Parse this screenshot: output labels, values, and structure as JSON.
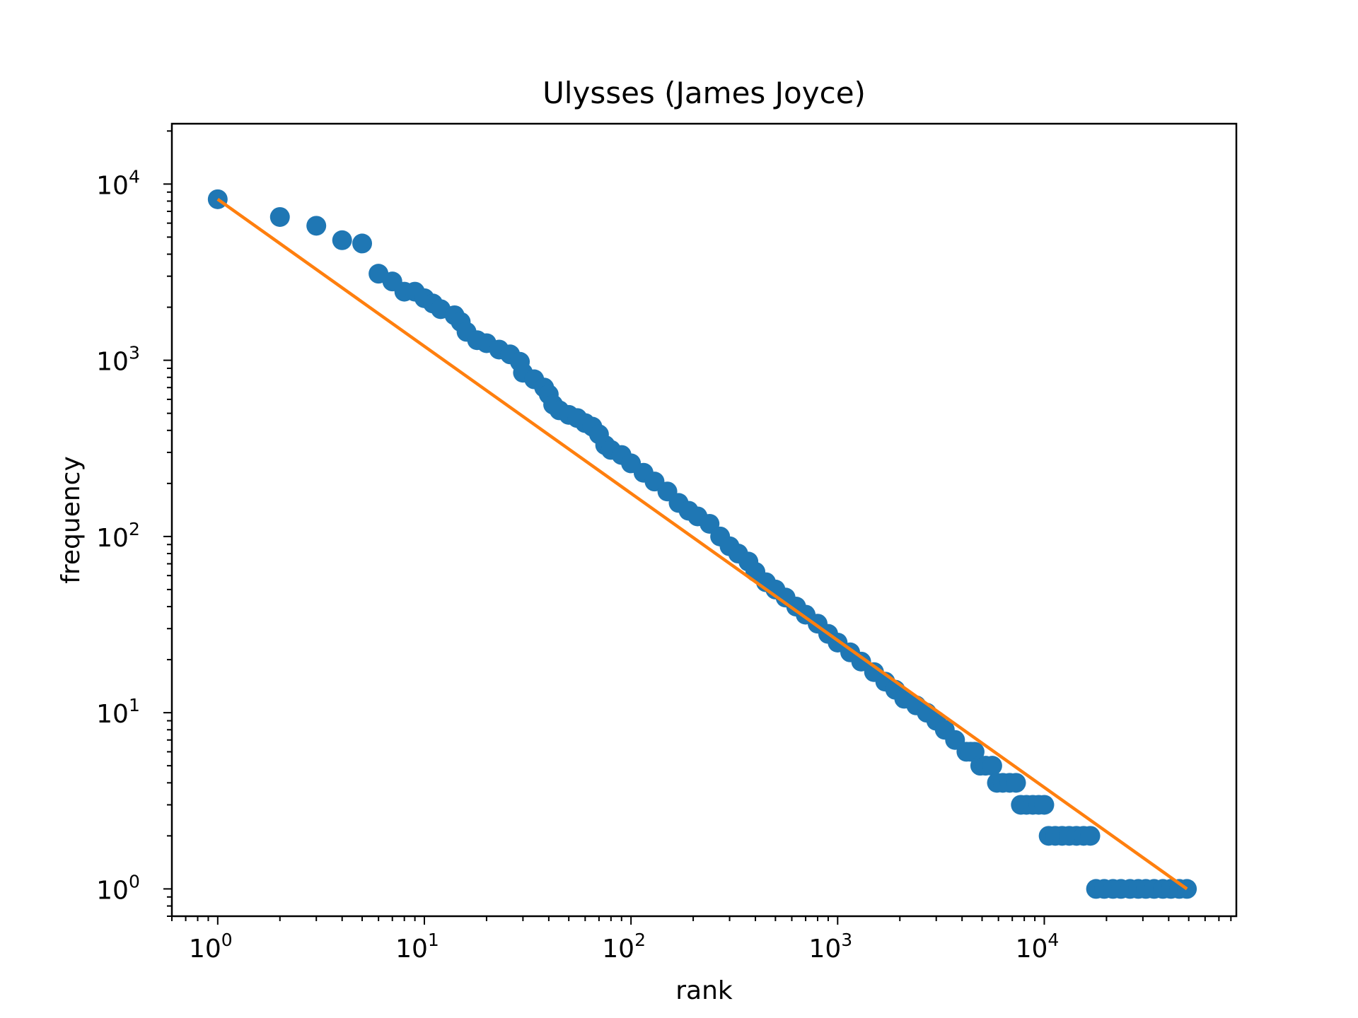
{
  "chart_data": {
    "type": "scatter",
    "title": "Ulysses (James Joyce)",
    "xlabel": "rank",
    "ylabel": "frequency",
    "xscale": "log",
    "yscale": "log",
    "xlim": [
      0.6,
      85000
    ],
    "ylim": [
      0.7,
      22000
    ],
    "x_ticks": [
      {
        "base": "10",
        "exp": "0",
        "value": 1
      },
      {
        "base": "10",
        "exp": "1",
        "value": 10
      },
      {
        "base": "10",
        "exp": "2",
        "value": 100
      },
      {
        "base": "10",
        "exp": "3",
        "value": 1000
      },
      {
        "base": "10",
        "exp": "4",
        "value": 10000
      }
    ],
    "y_ticks": [
      {
        "base": "10",
        "exp": "0",
        "value": 1
      },
      {
        "base": "10",
        "exp": "1",
        "value": 10
      },
      {
        "base": "10",
        "exp": "2",
        "value": 100
      },
      {
        "base": "10",
        "exp": "3",
        "value": 1000
      },
      {
        "base": "10",
        "exp": "4",
        "value": 10000
      }
    ],
    "grid": false,
    "series": [
      {
        "kind": "scatter",
        "color": "#1f77b4",
        "points": [
          [
            1,
            8200
          ],
          [
            2,
            6500
          ],
          [
            3,
            5800
          ],
          [
            4,
            4800
          ],
          [
            5,
            4600
          ],
          [
            6,
            3100
          ],
          [
            7,
            2800
          ],
          [
            8,
            2450
          ],
          [
            9,
            2450
          ],
          [
            10,
            2250
          ],
          [
            11,
            2100
          ],
          [
            12,
            1950
          ],
          [
            14,
            1800
          ],
          [
            15,
            1650
          ],
          [
            16,
            1450
          ],
          [
            18,
            1300
          ],
          [
            20,
            1250
          ],
          [
            23,
            1150
          ],
          [
            26,
            1080
          ],
          [
            29,
            980
          ],
          [
            30,
            850
          ],
          [
            34,
            780
          ],
          [
            38,
            700
          ],
          [
            40,
            640
          ],
          [
            42,
            560
          ],
          [
            45,
            520
          ],
          [
            50,
            490
          ],
          [
            55,
            470
          ],
          [
            60,
            440
          ],
          [
            65,
            420
          ],
          [
            70,
            380
          ],
          [
            75,
            330
          ],
          [
            80,
            310
          ],
          [
            90,
            290
          ],
          [
            100,
            260
          ],
          [
            115,
            230
          ],
          [
            130,
            205
          ],
          [
            150,
            180
          ],
          [
            170,
            155
          ],
          [
            190,
            140
          ],
          [
            210,
            130
          ],
          [
            240,
            118
          ],
          [
            270,
            100
          ],
          [
            300,
            88
          ],
          [
            330,
            80
          ],
          [
            370,
            72
          ],
          [
            400,
            63
          ],
          [
            450,
            55
          ],
          [
            500,
            50
          ],
          [
            560,
            45
          ],
          [
            630,
            40
          ],
          [
            700,
            36
          ],
          [
            800,
            32
          ],
          [
            900,
            28
          ],
          [
            1000,
            25
          ],
          [
            1150,
            22
          ],
          [
            1300,
            19.5
          ],
          [
            1500,
            17
          ],
          [
            1700,
            15
          ],
          [
            1900,
            13.5
          ],
          [
            2100,
            12
          ],
          [
            2400,
            11
          ],
          [
            2700,
            10
          ],
          [
            3000,
            9
          ],
          [
            3300,
            8
          ],
          [
            3700,
            7
          ],
          [
            4200,
            6
          ],
          [
            4400,
            6
          ],
          [
            4600,
            6
          ],
          [
            4900,
            5
          ],
          [
            5200,
            5
          ],
          [
            5600,
            5
          ],
          [
            5900,
            4
          ],
          [
            6300,
            4
          ],
          [
            6800,
            4
          ],
          [
            7300,
            4
          ],
          [
            7700,
            3
          ],
          [
            8200,
            3
          ],
          [
            8800,
            3
          ],
          [
            9400,
            3
          ],
          [
            10000,
            3
          ],
          [
            10500,
            2
          ],
          [
            11300,
            2
          ],
          [
            12200,
            2
          ],
          [
            13200,
            2
          ],
          [
            14300,
            2
          ],
          [
            15500,
            2
          ],
          [
            16700,
            2
          ],
          [
            17800,
            1
          ],
          [
            19500,
            1
          ],
          [
            21500,
            1
          ],
          [
            23500,
            1
          ],
          [
            26000,
            1
          ],
          [
            28500,
            1
          ],
          [
            31000,
            1
          ],
          [
            34000,
            1
          ],
          [
            37500,
            1
          ],
          [
            41000,
            1
          ],
          [
            45000,
            1
          ],
          [
            49000,
            1
          ]
        ]
      },
      {
        "kind": "line",
        "color": "#ff7f0e",
        "points": [
          [
            1,
            8200
          ],
          [
            49000,
            1
          ]
        ]
      }
    ]
  }
}
